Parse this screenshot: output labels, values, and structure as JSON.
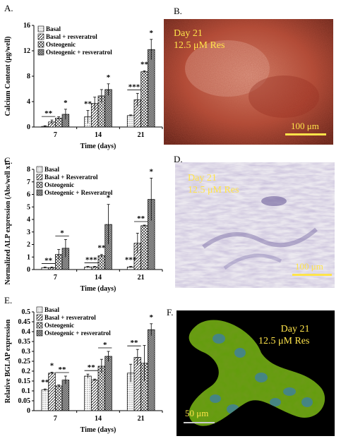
{
  "panels": {
    "a": "A.",
    "b": "B.",
    "c": "C.",
    "d": "D.",
    "e": "E.",
    "f": "F."
  },
  "colors": {
    "basal": "#ffffff",
    "basal_res": "#d8d8d8",
    "osteo": "#bdbdbd",
    "osteo_res": "#8c8c8c",
    "scale_text": "#ffe44a"
  },
  "chart_data": [
    {
      "id": "A",
      "type": "bar",
      "ylabel": "Calcium Content (µg/well)",
      "xlabel": "Time (days)",
      "ylim": [
        0,
        16
      ],
      "yticks": [
        0,
        4,
        8,
        12,
        16
      ],
      "categories": [
        "7",
        "14",
        "21"
      ],
      "legend": [
        "Basal",
        "Basal + resveratrol",
        "Osteogenic",
        "Osteogenic + resveratrol"
      ],
      "series": [
        {
          "name": "Basal",
          "values": [
            0.1,
            1.6,
            1.8
          ],
          "errors": [
            0.1,
            1.0,
            0.1
          ]
        },
        {
          "name": "Basal + resveratrol",
          "values": [
            0.8,
            3.7,
            4.3
          ],
          "errors": [
            0.3,
            1.0,
            1.0
          ]
        },
        {
          "name": "Osteogenic",
          "values": [
            1.4,
            4.9,
            8.7
          ],
          "errors": [
            0.2,
            1.0,
            0.15
          ]
        },
        {
          "name": "Osteogenic + resveratrol",
          "values": [
            2.0,
            5.9,
            12.2
          ],
          "errors": [
            0.8,
            0.9,
            1.6
          ]
        }
      ],
      "annotations": [
        {
          "text": "**",
          "cat": 0,
          "from": 0,
          "to": 1
        },
        {
          "text": "*",
          "cat": 0,
          "from": 3,
          "to": 3
        },
        {
          "text": "**",
          "cat": 1,
          "from": 0,
          "to": 0
        },
        {
          "text": "*",
          "cat": 1,
          "from": 3,
          "to": 3
        },
        {
          "text": "***",
          "cat": 2,
          "from": 0,
          "to": 1
        },
        {
          "text": "**",
          "cat": 2,
          "from": 2,
          "to": 2
        },
        {
          "text": "*",
          "cat": 2,
          "from": 3,
          "to": 3
        }
      ]
    },
    {
      "id": "C",
      "type": "bar",
      "ylabel": "Normalized ALP expression (Abs/well x10⁶)",
      "xlabel": "Time (days)",
      "ylim": [
        0,
        8
      ],
      "yticks": [
        0,
        1,
        2,
        3,
        4,
        5,
        6,
        7,
        8
      ],
      "categories": [
        "7",
        "14",
        "21"
      ],
      "legend": [
        "Basal",
        "Basal + Resveratrol",
        "Osteogenic",
        "Osteogenic + Resveratrol"
      ],
      "series": [
        {
          "name": "Basal",
          "values": [
            0.15,
            0.2,
            0.2
          ],
          "errors": [
            0.05,
            0.05,
            0.05
          ]
        },
        {
          "name": "Basal + Resveratrol",
          "values": [
            0.15,
            0.2,
            2.1
          ],
          "errors": [
            0.05,
            0.05,
            0.8
          ]
        },
        {
          "name": "Osteogenic",
          "values": [
            1.2,
            1.1,
            3.5
          ],
          "errors": [
            0.4,
            0.1,
            0.05
          ]
        },
        {
          "name": "Osteogenic + Resveratrol",
          "values": [
            1.7,
            3.6,
            5.6
          ],
          "errors": [
            0.7,
            1.6,
            1.7
          ]
        }
      ],
      "annotations": [
        {
          "text": "**",
          "cat": 0,
          "from": 0,
          "to": 1
        },
        {
          "text": "*",
          "cat": 0,
          "from": 2,
          "to": 3
        },
        {
          "text": "***",
          "cat": 1,
          "from": 0,
          "to": 1
        },
        {
          "text": "**",
          "cat": 1,
          "from": 2,
          "to": 2
        },
        {
          "text": "*",
          "cat": 1,
          "from": 3,
          "to": 3
        },
        {
          "text": "***",
          "cat": 2,
          "from": 0,
          "to": 0
        },
        {
          "text": "**",
          "cat": 2,
          "from": 1,
          "to": 2
        },
        {
          "text": "*",
          "cat": 2,
          "from": 3,
          "to": 3
        }
      ]
    },
    {
      "id": "E",
      "type": "bar",
      "ylabel": "Relative BGLAP expression",
      "xlabel": "Time (days)",
      "ylim": [
        0,
        0.5
      ],
      "yticks": [
        0,
        0.05,
        0.1,
        0.15,
        0.2,
        0.25,
        0.3,
        0.35,
        0.4,
        0.45,
        0.5
      ],
      "categories": [
        "7",
        "14",
        "21"
      ],
      "legend": [
        "Basal",
        "Basal + resveratrol",
        "Osteogenic",
        "Osteogenic + resveratrol"
      ],
      "series": [
        {
          "name": "Basal",
          "values": [
            0.105,
            0.175,
            0.19
          ],
          "errors": [
            0.005,
            0.01,
            0.045
          ]
        },
        {
          "name": "Basal + resveratrol",
          "values": [
            0.19,
            0.155,
            0.27
          ],
          "errors": [
            0.005,
            0.005,
            0.04
          ]
        },
        {
          "name": "Osteogenic",
          "values": [
            0.125,
            0.225,
            0.24
          ],
          "errors": [
            0.005,
            0.035,
            0.09
          ]
        },
        {
          "name": "Osteogenic + resveratrol",
          "values": [
            0.155,
            0.275,
            0.41
          ],
          "errors": [
            0.02,
            0.025,
            0.03
          ]
        }
      ],
      "annotations": [
        {
          "text": "**",
          "cat": 0,
          "from": 0,
          "to": 0
        },
        {
          "text": "*",
          "cat": 0,
          "from": 1,
          "to": 1
        },
        {
          "text": "**",
          "cat": 0,
          "from": 2,
          "to": 3
        },
        {
          "text": "**",
          "cat": 1,
          "from": 0,
          "to": 1
        },
        {
          "text": "*",
          "cat": 1,
          "from": 2,
          "to": 3
        },
        {
          "text": "**",
          "cat": 2,
          "from": 0,
          "to": 1
        },
        {
          "text": "*",
          "cat": 2,
          "from": 3,
          "to": 3
        }
      ]
    }
  ],
  "photos": {
    "b": {
      "day": "Day 21",
      "conc": "12.5 μM Res",
      "scale": "100 μm"
    },
    "d": {
      "day": "Day 21",
      "conc": "12.5 μM Res",
      "scale": "100 μm"
    },
    "f": {
      "day": "Day 21",
      "conc": "12.5 μM Res",
      "scale": "50 μm"
    }
  }
}
